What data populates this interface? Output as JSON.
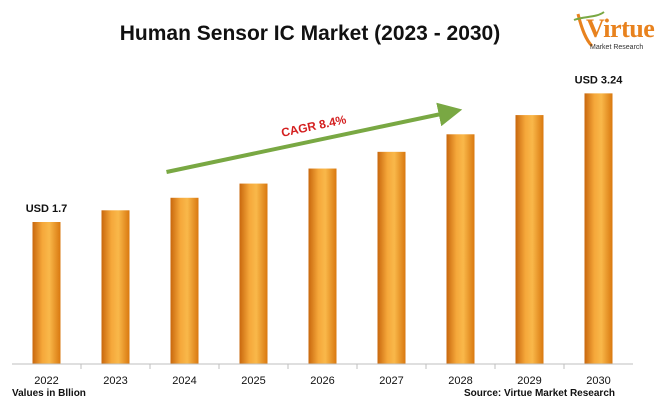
{
  "title": "Human Sensor IC Market (2023 - 2030)",
  "logo": {
    "word": "Virtue",
    "sub": "Market Research"
  },
  "footer": {
    "units": "Values in Bllion",
    "source": "Source: Virtue Market Research"
  },
  "colors": {
    "bar_light": "#f9b84a",
    "bar_mid": "#f0901e",
    "bar_dark": "#b35a0a",
    "arrow": "#79a843",
    "cagr_text": "#d41f1f",
    "axis": "#bfbfbf"
  },
  "chart_data": {
    "type": "bar",
    "title": "Human Sensor IC Market (2023 - 2030)",
    "categories": [
      "2022",
      "2023",
      "2024",
      "2025",
      "2026",
      "2027",
      "2028",
      "2029",
      "2030"
    ],
    "values": [
      1.7,
      1.84,
      1.99,
      2.16,
      2.34,
      2.54,
      2.75,
      2.98,
      3.24
    ],
    "ylim": [
      0,
      3.4
    ],
    "grid": false,
    "data_labels": [
      {
        "index": 0,
        "text": "USD 1.7"
      },
      {
        "index": 8,
        "text": "USD 3.24"
      }
    ],
    "annotation": {
      "text": "CAGR 8.4%"
    }
  }
}
